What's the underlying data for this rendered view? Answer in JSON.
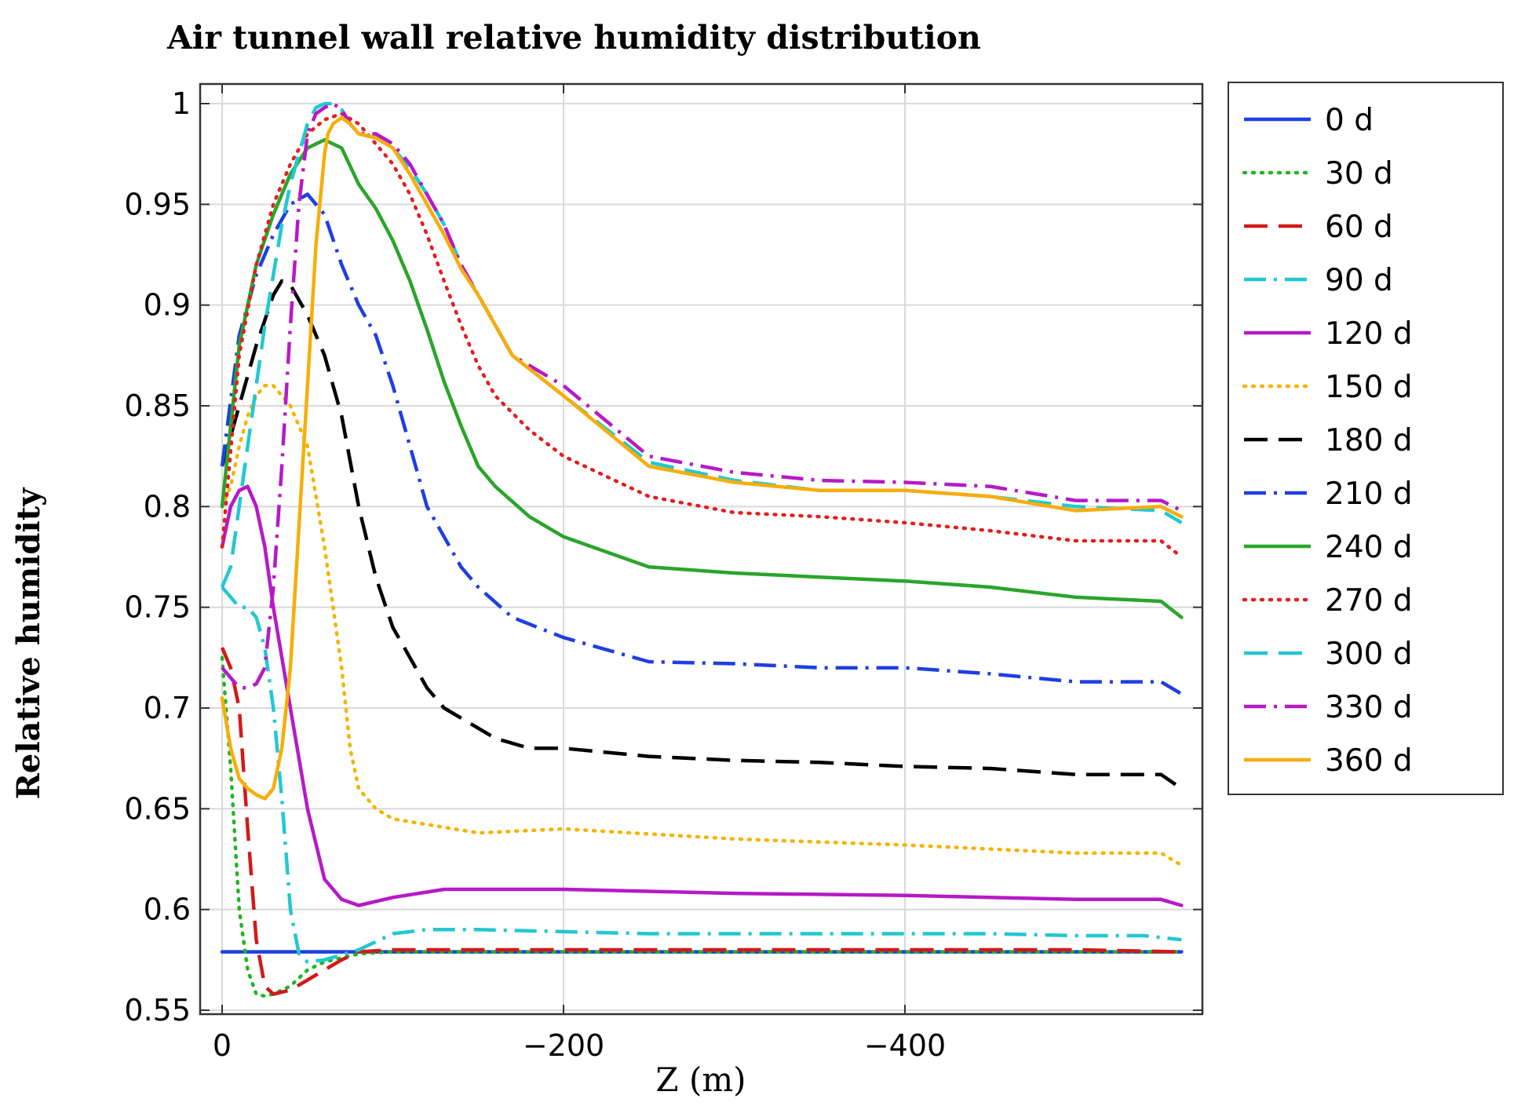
{
  "chart_data": {
    "type": "line",
    "title": "Air tunnel wall relative humidity distribution",
    "xlabel": "Z (m)",
    "ylabel": "Relative humidity",
    "xlim": [
      0,
      -570
    ],
    "ylim": [
      0.55,
      1.0
    ],
    "x_ticks": [
      {
        "value": 0,
        "label": "0"
      },
      {
        "value": -200,
        "label": "−200"
      },
      {
        "value": -400,
        "label": "−400"
      }
    ],
    "y_ticks": [
      {
        "value": 0.55,
        "label": "0.55"
      },
      {
        "value": 0.6,
        "label": "0.6"
      },
      {
        "value": 0.65,
        "label": "0.65"
      },
      {
        "value": 0.7,
        "label": "0.7"
      },
      {
        "value": 0.75,
        "label": "0.75"
      },
      {
        "value": 0.8,
        "label": "0.8"
      },
      {
        "value": 0.85,
        "label": "0.85"
      },
      {
        "value": 0.9,
        "label": "0.9"
      },
      {
        "value": 0.95,
        "label": "0.95"
      },
      {
        "value": 1.0,
        "label": "1"
      }
    ],
    "grid": true,
    "legend_position": "right",
    "series": [
      {
        "name": "0 d",
        "color": "#1f3fe0",
        "style": "solid",
        "x": [
          0,
          -562
        ],
        "y": [
          0.579,
          0.579
        ]
      },
      {
        "name": "30 d",
        "color": "#22b522",
        "style": "dotted",
        "x": [
          0,
          -5,
          -10,
          -15,
          -20,
          -25,
          -30,
          -40,
          -50,
          -60,
          -80,
          -100,
          -150,
          -200,
          -300,
          -400,
          -500,
          -562
        ],
        "y": [
          0.725,
          0.67,
          0.6,
          0.57,
          0.558,
          0.557,
          0.558,
          0.562,
          0.57,
          0.574,
          0.578,
          0.579,
          0.579,
          0.579,
          0.579,
          0.579,
          0.579,
          0.579
        ]
      },
      {
        "name": "60 d",
        "color": "#d11a1a",
        "style": "dashed",
        "x": [
          0,
          -5,
          -10,
          -15,
          -20,
          -25,
          -30,
          -40,
          -50,
          -60,
          -70,
          -80,
          -100,
          -150,
          -200,
          -300,
          -400,
          -500,
          -562
        ],
        "y": [
          0.73,
          0.72,
          0.7,
          0.64,
          0.585,
          0.562,
          0.558,
          0.56,
          0.565,
          0.57,
          0.575,
          0.579,
          0.58,
          0.58,
          0.58,
          0.58,
          0.58,
          0.58,
          0.579
        ]
      },
      {
        "name": "90 d",
        "color": "#22c8d0",
        "style": "dashdot",
        "x": [
          0,
          -5,
          -10,
          -15,
          -20,
          -25,
          -30,
          -35,
          -40,
          -45,
          -50,
          -60,
          -80,
          -100,
          -120,
          -150,
          -200,
          -250,
          -300,
          -350,
          -400,
          -450,
          -500,
          -540,
          -562
        ],
        "y": [
          0.76,
          0.755,
          0.75,
          0.75,
          0.745,
          0.73,
          0.7,
          0.655,
          0.6,
          0.578,
          0.574,
          0.575,
          0.58,
          0.588,
          0.59,
          0.59,
          0.589,
          0.588,
          0.588,
          0.588,
          0.588,
          0.588,
          0.587,
          0.587,
          0.585
        ]
      },
      {
        "name": "120 d",
        "color": "#b61ac6",
        "style": "solid",
        "x": [
          0,
          -5,
          -10,
          -15,
          -20,
          -25,
          -30,
          -40,
          -50,
          -60,
          -70,
          -80,
          -100,
          -130,
          -200,
          -300,
          -400,
          -500,
          -550,
          -562
        ],
        "y": [
          0.78,
          0.8,
          0.808,
          0.81,
          0.8,
          0.78,
          0.75,
          0.7,
          0.65,
          0.615,
          0.605,
          0.602,
          0.606,
          0.61,
          0.61,
          0.608,
          0.607,
          0.605,
          0.605,
          0.602
        ]
      },
      {
        "name": "150 d",
        "color": "#f4b400",
        "style": "dotted",
        "x": [
          0,
          -5,
          -10,
          -15,
          -20,
          -25,
          -30,
          -40,
          -50,
          -60,
          -70,
          -75,
          -80,
          -90,
          -100,
          -150,
          -200,
          -300,
          -400,
          -500,
          -550,
          -562
        ],
        "y": [
          0.8,
          0.81,
          0.83,
          0.845,
          0.855,
          0.86,
          0.86,
          0.85,
          0.83,
          0.78,
          0.72,
          0.68,
          0.66,
          0.65,
          0.645,
          0.638,
          0.64,
          0.635,
          0.632,
          0.628,
          0.628,
          0.622
        ]
      },
      {
        "name": "180 d",
        "color": "#000000",
        "style": "dashed",
        "x": [
          0,
          -10,
          -20,
          -30,
          -35,
          -40,
          -50,
          -60,
          -70,
          -80,
          -90,
          -100,
          -110,
          -120,
          -130,
          -140,
          -150,
          -160,
          -180,
          -200,
          -250,
          -300,
          -350,
          -400,
          -450,
          -500,
          -550,
          -562
        ],
        "y": [
          0.82,
          0.85,
          0.88,
          0.905,
          0.912,
          0.91,
          0.895,
          0.875,
          0.845,
          0.8,
          0.765,
          0.74,
          0.725,
          0.71,
          0.7,
          0.695,
          0.69,
          0.685,
          0.68,
          0.68,
          0.676,
          0.674,
          0.673,
          0.671,
          0.67,
          0.667,
          0.667,
          0.66
        ]
      },
      {
        "name": "210 d",
        "color": "#1f3fe0",
        "style": "dashdot",
        "x": [
          0,
          -10,
          -20,
          -30,
          -40,
          -50,
          -60,
          -70,
          -80,
          -90,
          -100,
          -110,
          -120,
          -130,
          -140,
          -150,
          -170,
          -200,
          -250,
          -300,
          -350,
          -400,
          -450,
          -500,
          -550,
          -562
        ],
        "y": [
          0.82,
          0.885,
          0.915,
          0.935,
          0.95,
          0.955,
          0.945,
          0.92,
          0.9,
          0.885,
          0.86,
          0.83,
          0.8,
          0.785,
          0.77,
          0.76,
          0.745,
          0.735,
          0.723,
          0.722,
          0.72,
          0.72,
          0.717,
          0.713,
          0.713,
          0.707
        ]
      },
      {
        "name": "240 d",
        "color": "#2aa52a",
        "style": "solid",
        "x": [
          0,
          -10,
          -20,
          -30,
          -40,
          -50,
          -60,
          -70,
          -80,
          -90,
          -100,
          -110,
          -120,
          -130,
          -140,
          -150,
          -160,
          -180,
          -200,
          -250,
          -300,
          -350,
          -400,
          -450,
          -500,
          -550,
          -562
        ],
        "y": [
          0.8,
          0.88,
          0.92,
          0.945,
          0.965,
          0.978,
          0.982,
          0.978,
          0.96,
          0.948,
          0.932,
          0.912,
          0.888,
          0.862,
          0.84,
          0.82,
          0.81,
          0.795,
          0.785,
          0.77,
          0.767,
          0.765,
          0.763,
          0.76,
          0.755,
          0.753,
          0.745
        ]
      },
      {
        "name": "270 d",
        "color": "#e11f1f",
        "style": "dotted",
        "x": [
          0,
          -10,
          -20,
          -30,
          -40,
          -50,
          -60,
          -70,
          -80,
          -90,
          -100,
          -110,
          -120,
          -130,
          -140,
          -150,
          -160,
          -180,
          -200,
          -250,
          -300,
          -350,
          -400,
          -450,
          -500,
          -550,
          -562
        ],
        "y": [
          0.78,
          0.875,
          0.92,
          0.95,
          0.97,
          0.985,
          0.992,
          0.995,
          0.99,
          0.98,
          0.97,
          0.955,
          0.935,
          0.912,
          0.89,
          0.87,
          0.855,
          0.838,
          0.825,
          0.805,
          0.797,
          0.795,
          0.792,
          0.788,
          0.783,
          0.783,
          0.775
        ]
      },
      {
        "name": "300 d",
        "color": "#22c8d0",
        "style": "dashed",
        "x": [
          0,
          -5,
          -10,
          -15,
          -20,
          -25,
          -30,
          -35,
          -40,
          -45,
          -50,
          -55,
          -60,
          -65,
          -70,
          -75,
          -80,
          -90,
          -100,
          -110,
          -120,
          -130,
          -140,
          -150,
          -170,
          -200,
          -250,
          -300,
          -350,
          -400,
          -450,
          -500,
          -550,
          -562
        ],
        "y": [
          0.76,
          0.77,
          0.8,
          0.83,
          0.86,
          0.89,
          0.915,
          0.94,
          0.96,
          0.975,
          0.99,
          0.998,
          1.0,
          1.0,
          0.997,
          0.99,
          0.985,
          0.983,
          0.978,
          0.968,
          0.955,
          0.94,
          0.92,
          0.905,
          0.875,
          0.855,
          0.822,
          0.813,
          0.808,
          0.808,
          0.805,
          0.8,
          0.798,
          0.792
        ]
      },
      {
        "name": "330 d",
        "color": "#b61ac6",
        "style": "dashdot",
        "x": [
          0,
          -5,
          -10,
          -15,
          -20,
          -25,
          -30,
          -35,
          -40,
          -45,
          -50,
          -55,
          -60,
          -65,
          -70,
          -75,
          -80,
          -90,
          -100,
          -110,
          -120,
          -130,
          -140,
          -150,
          -170,
          -200,
          -250,
          -300,
          -350,
          -400,
          -450,
          -500,
          -550,
          -562
        ],
        "y": [
          0.72,
          0.715,
          0.71,
          0.71,
          0.712,
          0.72,
          0.76,
          0.82,
          0.89,
          0.95,
          0.985,
          0.995,
          0.998,
          1.0,
          0.997,
          0.99,
          0.985,
          0.985,
          0.98,
          0.97,
          0.955,
          0.94,
          0.92,
          0.905,
          0.875,
          0.86,
          0.825,
          0.817,
          0.813,
          0.812,
          0.81,
          0.803,
          0.803,
          0.798
        ]
      },
      {
        "name": "360 d",
        "color": "#f7ad0a",
        "style": "solid",
        "x": [
          0,
          -5,
          -10,
          -15,
          -20,
          -25,
          -30,
          -35,
          -40,
          -45,
          -50,
          -55,
          -60,
          -62,
          -65,
          -70,
          -75,
          -80,
          -90,
          -100,
          -110,
          -120,
          -130,
          -140,
          -150,
          -170,
          -200,
          -250,
          -300,
          -350,
          -400,
          -450,
          -500,
          -550,
          -562
        ],
        "y": [
          0.705,
          0.68,
          0.665,
          0.66,
          0.657,
          0.655,
          0.66,
          0.68,
          0.72,
          0.79,
          0.86,
          0.93,
          0.975,
          0.985,
          0.99,
          0.993,
          0.99,
          0.985,
          0.983,
          0.978,
          0.965,
          0.95,
          0.935,
          0.918,
          0.905,
          0.875,
          0.855,
          0.82,
          0.812,
          0.808,
          0.808,
          0.805,
          0.798,
          0.8,
          0.795
        ]
      }
    ]
  }
}
